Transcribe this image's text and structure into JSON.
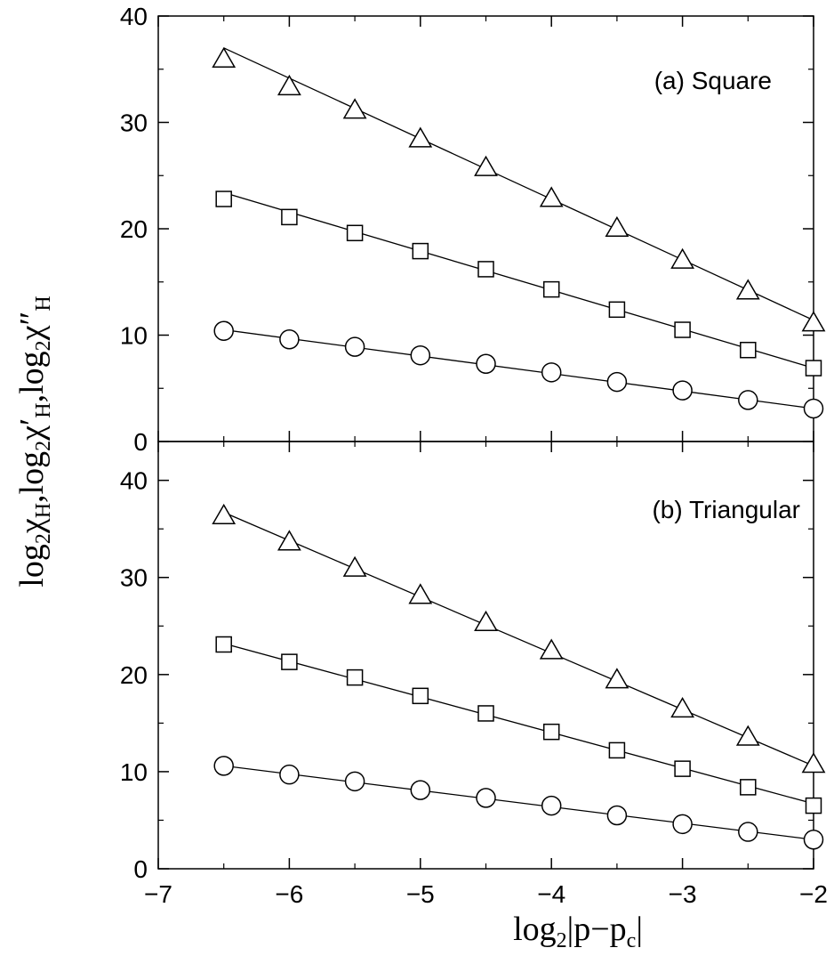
{
  "chart_data": [
    {
      "type": "line",
      "panel_label": "(a) Square",
      "xlim": [
        -7,
        -2
      ],
      "ylim": [
        0,
        40
      ],
      "y_ticks": [
        0,
        10,
        20,
        30,
        40
      ],
      "x": [
        -6.5,
        -6,
        -5.5,
        -5,
        -4.5,
        -4,
        -3.5,
        -3,
        -2.5,
        -2
      ],
      "series": [
        {
          "marker": "triangle",
          "values": [
            35.9,
            33.3,
            31.1,
            28.4,
            25.7,
            22.8,
            20.0,
            17.0,
            14.1,
            11.1
          ],
          "fit": [
            37.0,
            11.4
          ]
        },
        {
          "marker": "square",
          "values": [
            22.8,
            21.1,
            19.6,
            17.9,
            16.2,
            14.3,
            12.4,
            10.5,
            8.6,
            6.9
          ],
          "fit": [
            23.4,
            6.9
          ]
        },
        {
          "marker": "circle",
          "values": [
            10.4,
            9.6,
            8.9,
            8.1,
            7.3,
            6.5,
            5.6,
            4.8,
            3.9,
            3.1
          ],
          "fit": [
            10.5,
            3.1
          ]
        }
      ]
    },
    {
      "type": "line",
      "panel_label": "(b) Triangular",
      "xlim": [
        -7,
        -2
      ],
      "ylim": [
        0,
        44
      ],
      "y_ticks": [
        0,
        10,
        20,
        30,
        40
      ],
      "x": [
        -6.5,
        -6,
        -5.5,
        -5,
        -4.5,
        -4,
        -3.5,
        -3,
        -2.5,
        -2
      ],
      "series": [
        {
          "marker": "triangle",
          "values": [
            36.3,
            33.6,
            30.9,
            28.1,
            25.3,
            22.4,
            19.4,
            16.4,
            13.5,
            10.7
          ],
          "fit": [
            36.7,
            10.6
          ]
        },
        {
          "marker": "square",
          "values": [
            23.1,
            21.3,
            19.7,
            17.8,
            16.0,
            14.1,
            12.2,
            10.3,
            8.4,
            6.5
          ],
          "fit": [
            23.2,
            6.7
          ]
        },
        {
          "marker": "circle",
          "values": [
            10.6,
            9.7,
            9.0,
            8.1,
            7.3,
            6.5,
            5.5,
            4.6,
            3.8,
            3.0
          ],
          "fit": [
            10.6,
            3.0
          ]
        }
      ]
    }
  ],
  "x_ticks": [
    -7,
    -6,
    -5,
    -4,
    -3,
    -2
  ],
  "x_tick_labels": [
    "−7",
    "−6",
    "−5",
    "−4",
    "−3",
    "−2"
  ],
  "xlabel": {
    "main": "log",
    "sub1": "2",
    "mid": "|p−p",
    "sub2": "c",
    "end": "|"
  },
  "ylabel": {
    "t1": "log",
    "s1": "2",
    "t2": "χ",
    "s2": "H",
    "t3": ",log",
    "s3": "2",
    "t4": "χ′",
    "s4": "H",
    "t5": ",log",
    "s5": "2",
    "t6": "χ″",
    "s6": "H"
  }
}
